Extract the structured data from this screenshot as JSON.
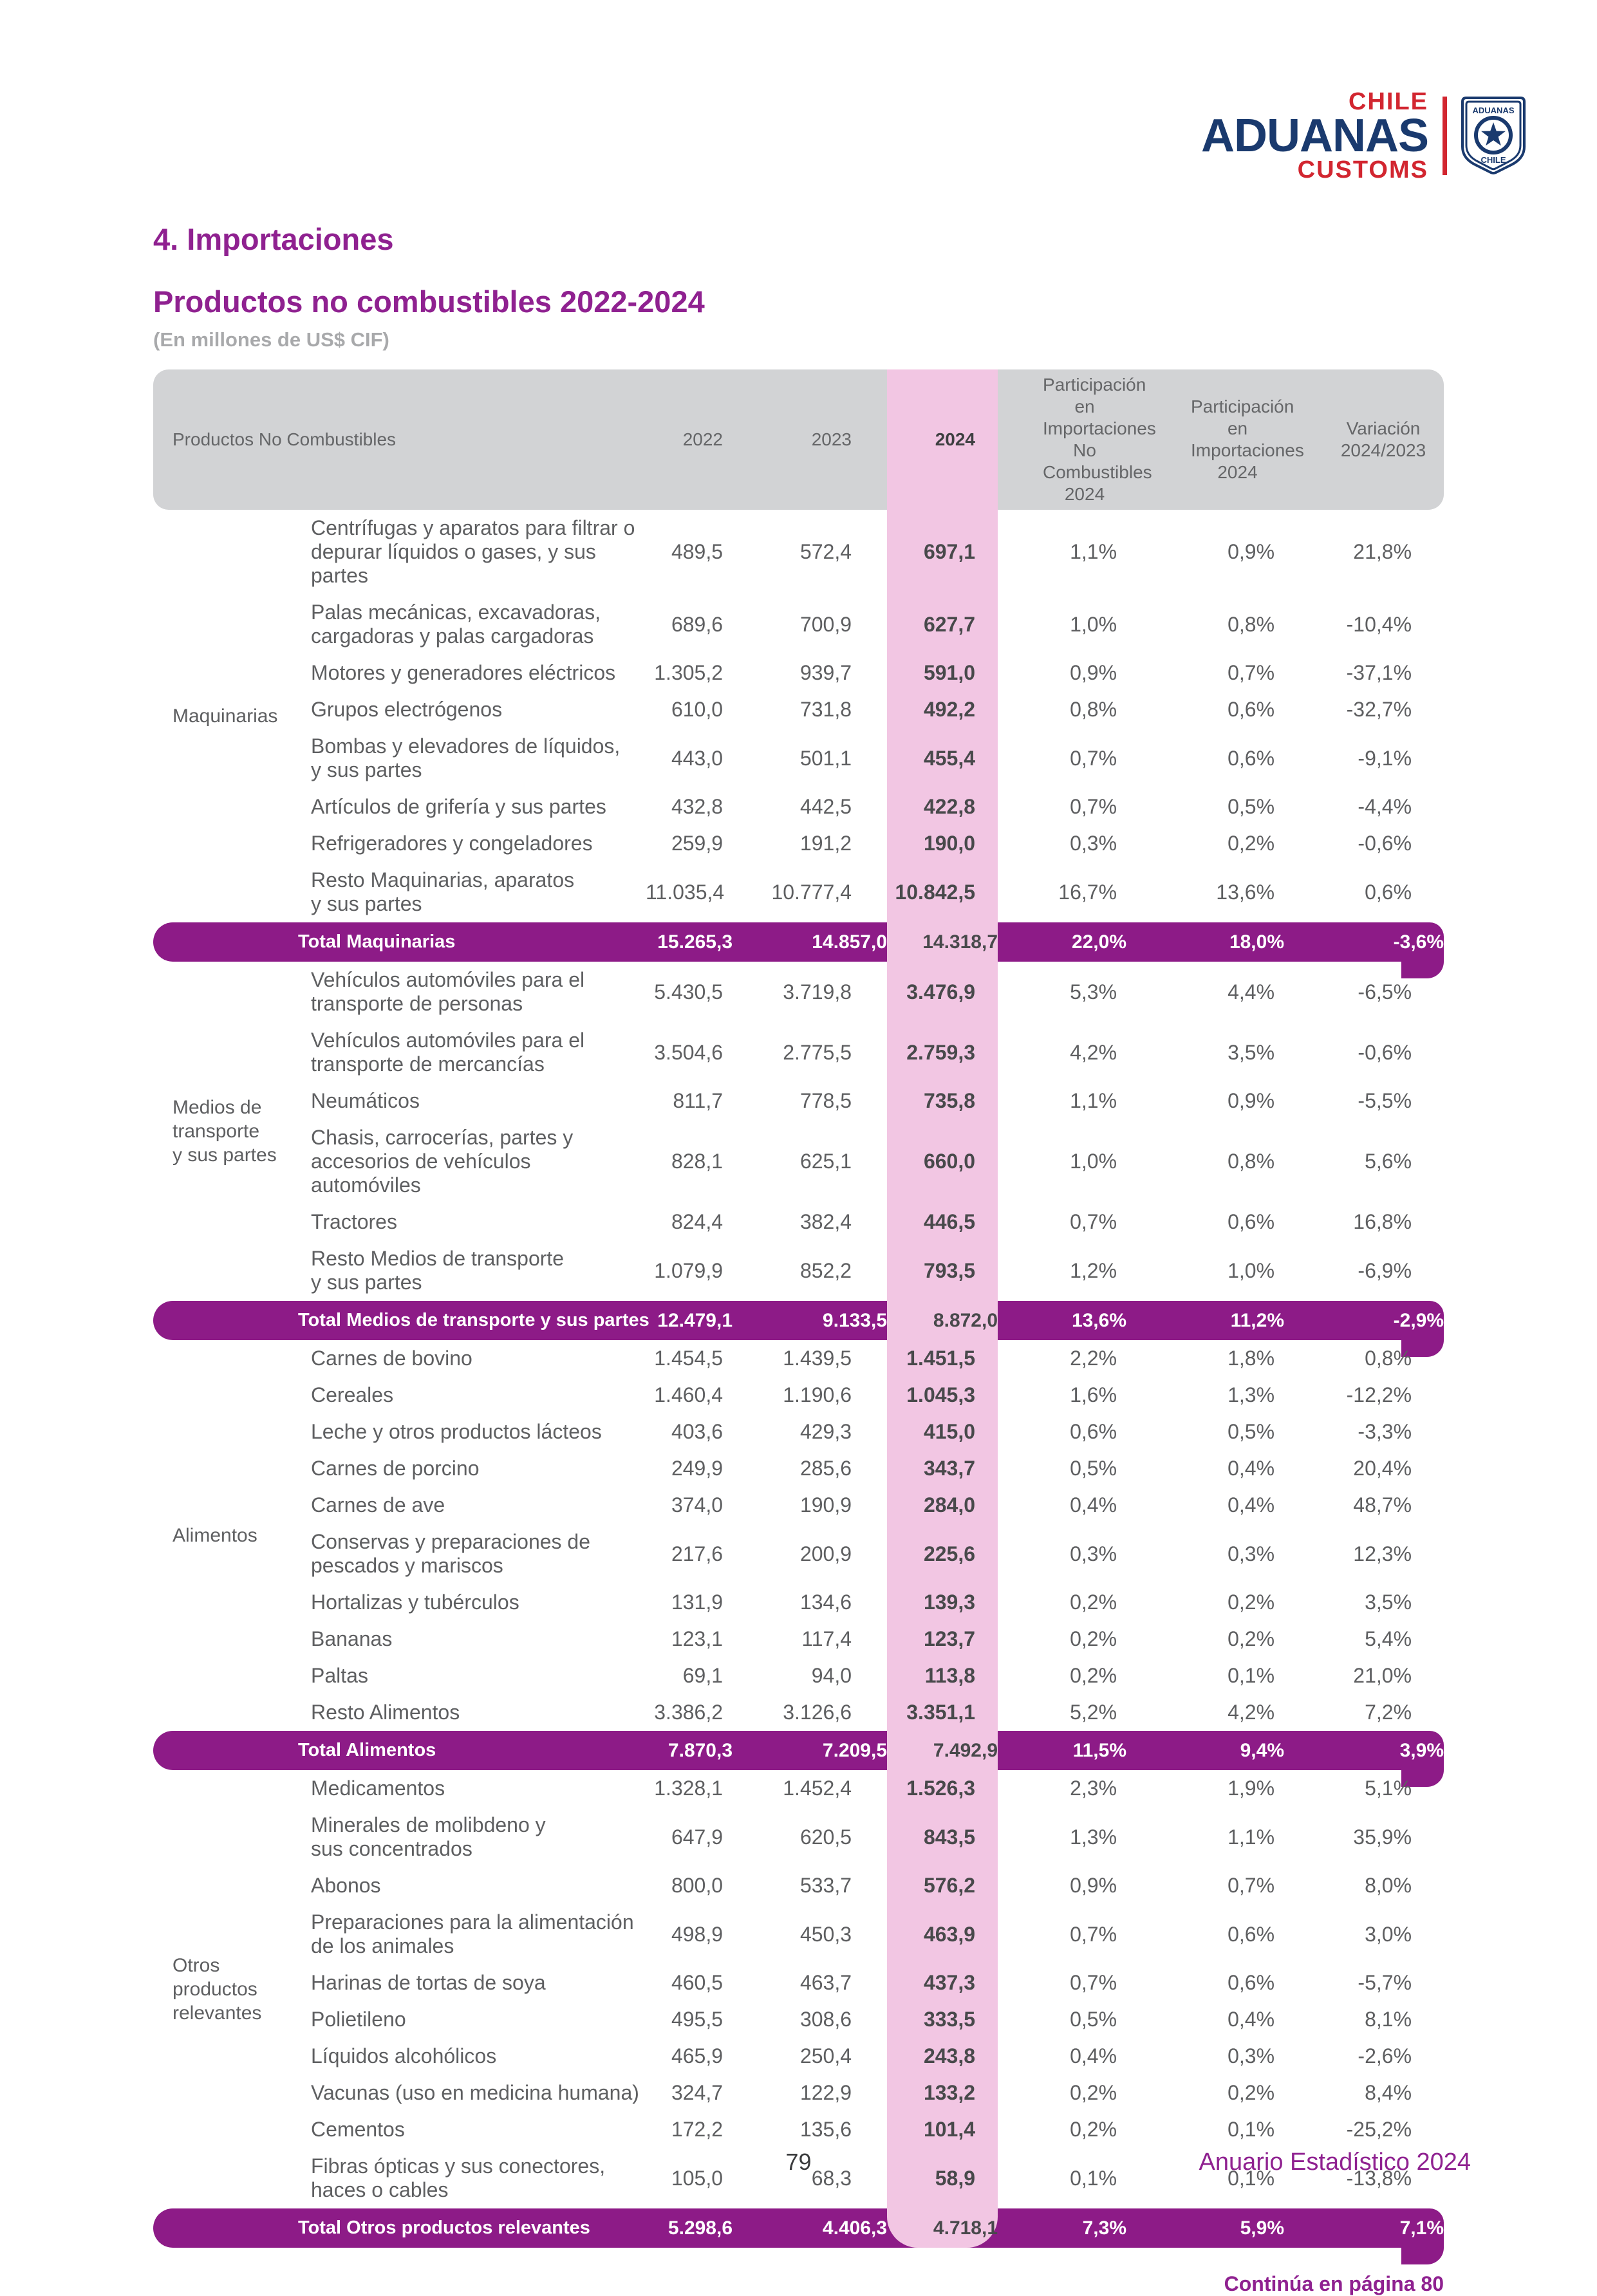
{
  "page": {
    "section_title": "4. Importaciones",
    "subtitle": "Productos no combustibles 2022-2024",
    "unit_note": "(En millones de US$ CIF)",
    "continua": "Continúa en página 80",
    "page_number": "79",
    "footer_right": "Anuario Estadístico 2024"
  },
  "logo": {
    "chile": "CHILE",
    "aduanas": "ADUANAS",
    "customs": "CUSTOMS",
    "shield_top": "ADUANAS",
    "shield_bottom": "CHILE"
  },
  "colors": {
    "purple": "#8D1B87",
    "pink": "#F2C6E3",
    "header_gray": "#D2D3D5",
    "heading_purple": "#8F2190",
    "logo_red": "#D22630",
    "logo_navy": "#1A3A6E"
  },
  "table": {
    "columns": {
      "products": "Productos No Combustibles",
      "y2022": "2022",
      "y2023": "2023",
      "y2024": "2024",
      "part_nc": "Participación en\nImportaciones No\nCombustibles 2024",
      "part_imp": "Participación en\nImportaciones\n2024",
      "variacion": "Variación\n2024/2023"
    },
    "groups": [
      {
        "name": "Maquinarias",
        "rows": [
          {
            "product": "Centrífugas y aparatos para filtrar o\ndepurar líquidos o gases, y sus partes",
            "v2022": "489,5",
            "v2023": "572,4",
            "v2024": "697,1",
            "part_nc": "1,1%",
            "part_imp": "0,9%",
            "var": "21,8%"
          },
          {
            "product": "Palas mecánicas, excavadoras,\ncargadoras y palas cargadoras",
            "v2022": "689,6",
            "v2023": "700,9",
            "v2024": "627,7",
            "part_nc": "1,0%",
            "part_imp": "0,8%",
            "var": "-10,4%"
          },
          {
            "product": "Motores y generadores eléctricos",
            "v2022": "1.305,2",
            "v2023": "939,7",
            "v2024": "591,0",
            "part_nc": "0,9%",
            "part_imp": "0,7%",
            "var": "-37,1%"
          },
          {
            "product": "Grupos electrógenos",
            "v2022": "610,0",
            "v2023": "731,8",
            "v2024": "492,2",
            "part_nc": "0,8%",
            "part_imp": "0,6%",
            "var": "-32,7%"
          },
          {
            "product": "Bombas y elevadores de líquidos,\ny sus partes",
            "v2022": "443,0",
            "v2023": "501,1",
            "v2024": "455,4",
            "part_nc": "0,7%",
            "part_imp": "0,6%",
            "var": "-9,1%"
          },
          {
            "product": "Artículos de grifería y sus partes",
            "v2022": "432,8",
            "v2023": "442,5",
            "v2024": "422,8",
            "part_nc": "0,7%",
            "part_imp": "0,5%",
            "var": "-4,4%"
          },
          {
            "product": "Refrigeradores y congeladores",
            "v2022": "259,9",
            "v2023": "191,2",
            "v2024": "190,0",
            "part_nc": "0,3%",
            "part_imp": "0,2%",
            "var": "-0,6%"
          },
          {
            "product": "Resto Maquinarias, aparatos\ny sus partes",
            "v2022": "11.035,4",
            "v2023": "10.777,4",
            "v2024": "10.842,5",
            "part_nc": "16,7%",
            "part_imp": "13,6%",
            "var": "0,6%"
          }
        ],
        "total": {
          "label": "Total Maquinarias",
          "v2022": "15.265,3",
          "v2023": "14.857,0",
          "v2024": "14.318,7",
          "part_nc": "22,0%",
          "part_imp": "18,0%",
          "var": "-3,6%"
        }
      },
      {
        "name": "Medios de\ntransporte\ny sus partes",
        "rows": [
          {
            "product": "Vehículos automóviles para el\ntransporte de personas",
            "v2022": "5.430,5",
            "v2023": "3.719,8",
            "v2024": "3.476,9",
            "part_nc": "5,3%",
            "part_imp": "4,4%",
            "var": "-6,5%"
          },
          {
            "product": "Vehículos automóviles para el\ntransporte de mercancías",
            "v2022": "3.504,6",
            "v2023": "2.775,5",
            "v2024": "2.759,3",
            "part_nc": "4,2%",
            "part_imp": "3,5%",
            "var": "-0,6%"
          },
          {
            "product": "Neumáticos",
            "v2022": "811,7",
            "v2023": "778,5",
            "v2024": "735,8",
            "part_nc": "1,1%",
            "part_imp": "0,9%",
            "var": "-5,5%"
          },
          {
            "product": "Chasis, carrocerías, partes y\naccesorios de vehículos automóviles",
            "v2022": "828,1",
            "v2023": "625,1",
            "v2024": "660,0",
            "part_nc": "1,0%",
            "part_imp": "0,8%",
            "var": "5,6%"
          },
          {
            "product": "Tractores",
            "v2022": "824,4",
            "v2023": "382,4",
            "v2024": "446,5",
            "part_nc": "0,7%",
            "part_imp": "0,6%",
            "var": "16,8%"
          },
          {
            "product": "Resto Medios de transporte\ny sus partes",
            "v2022": "1.079,9",
            "v2023": "852,2",
            "v2024": "793,5",
            "part_nc": "1,2%",
            "part_imp": "1,0%",
            "var": "-6,9%"
          }
        ],
        "total": {
          "label": "Total Medios de transporte y sus partes",
          "v2022": "12.479,1",
          "v2023": "9.133,5",
          "v2024": "8.872,0",
          "part_nc": "13,6%",
          "part_imp": "11,2%",
          "var": "-2,9%"
        }
      },
      {
        "name": "Alimentos",
        "rows": [
          {
            "product": "Carnes de bovino",
            "v2022": "1.454,5",
            "v2023": "1.439,5",
            "v2024": "1.451,5",
            "part_nc": "2,2%",
            "part_imp": "1,8%",
            "var": "0,8%"
          },
          {
            "product": "Cereales",
            "v2022": "1.460,4",
            "v2023": "1.190,6",
            "v2024": "1.045,3",
            "part_nc": "1,6%",
            "part_imp": "1,3%",
            "var": "-12,2%"
          },
          {
            "product": "Leche y otros productos lácteos",
            "v2022": "403,6",
            "v2023": "429,3",
            "v2024": "415,0",
            "part_nc": "0,6%",
            "part_imp": "0,5%",
            "var": "-3,3%"
          },
          {
            "product": "Carnes de porcino",
            "v2022": "249,9",
            "v2023": "285,6",
            "v2024": "343,7",
            "part_nc": "0,5%",
            "part_imp": "0,4%",
            "var": "20,4%"
          },
          {
            "product": "Carnes de ave",
            "v2022": "374,0",
            "v2023": "190,9",
            "v2024": "284,0",
            "part_nc": "0,4%",
            "part_imp": "0,4%",
            "var": "48,7%"
          },
          {
            "product": "Conservas y preparaciones de\npescados y mariscos",
            "v2022": "217,6",
            "v2023": "200,9",
            "v2024": "225,6",
            "part_nc": "0,3%",
            "part_imp": "0,3%",
            "var": "12,3%"
          },
          {
            "product": "Hortalizas y tubérculos",
            "v2022": "131,9",
            "v2023": "134,6",
            "v2024": "139,3",
            "part_nc": "0,2%",
            "part_imp": "0,2%",
            "var": "3,5%"
          },
          {
            "product": "Bananas",
            "v2022": "123,1",
            "v2023": "117,4",
            "v2024": "123,7",
            "part_nc": "0,2%",
            "part_imp": "0,2%",
            "var": "5,4%"
          },
          {
            "product": "Paltas",
            "v2022": "69,1",
            "v2023": "94,0",
            "v2024": "113,8",
            "part_nc": "0,2%",
            "part_imp": "0,1%",
            "var": "21,0%"
          },
          {
            "product": "Resto Alimentos",
            "v2022": "3.386,2",
            "v2023": "3.126,6",
            "v2024": "3.351,1",
            "part_nc": "5,2%",
            "part_imp": "4,2%",
            "var": "7,2%"
          }
        ],
        "total": {
          "label": "Total Alimentos",
          "v2022": "7.870,3",
          "v2023": "7.209,5",
          "v2024": "7.492,9",
          "part_nc": "11,5%",
          "part_imp": "9,4%",
          "var": "3,9%"
        }
      },
      {
        "name": "Otros productos\nrelevantes",
        "rows": [
          {
            "product": "Medicamentos",
            "v2022": "1.328,1",
            "v2023": "1.452,4",
            "v2024": "1.526,3",
            "part_nc": "2,3%",
            "part_imp": "1,9%",
            "var": "5,1%"
          },
          {
            "product": "Minerales de molibdeno y\nsus concentrados",
            "v2022": "647,9",
            "v2023": "620,5",
            "v2024": "843,5",
            "part_nc": "1,3%",
            "part_imp": "1,1%",
            "var": "35,9%"
          },
          {
            "product": "Abonos",
            "v2022": "800,0",
            "v2023": "533,7",
            "v2024": "576,2",
            "part_nc": "0,9%",
            "part_imp": "0,7%",
            "var": "8,0%"
          },
          {
            "product": "Preparaciones para la alimentación\nde los animales",
            "v2022": "498,9",
            "v2023": "450,3",
            "v2024": "463,9",
            "part_nc": "0,7%",
            "part_imp": "0,6%",
            "var": "3,0%"
          },
          {
            "product": "Harinas de tortas de soya",
            "v2022": "460,5",
            "v2023": "463,7",
            "v2024": "437,3",
            "part_nc": "0,7%",
            "part_imp": "0,6%",
            "var": "-5,7%"
          },
          {
            "product": "Polietileno",
            "v2022": "495,5",
            "v2023": "308,6",
            "v2024": "333,5",
            "part_nc": "0,5%",
            "part_imp": "0,4%",
            "var": "8,1%"
          },
          {
            "product": "Líquidos alcohólicos",
            "v2022": "465,9",
            "v2023": "250,4",
            "v2024": "243,8",
            "part_nc": "0,4%",
            "part_imp": "0,3%",
            "var": "-2,6%"
          },
          {
            "product": "Vacunas (uso en medicina humana)",
            "v2022": "324,7",
            "v2023": "122,9",
            "v2024": "133,2",
            "part_nc": "0,2%",
            "part_imp": "0,2%",
            "var": "8,4%"
          },
          {
            "product": "Cementos",
            "v2022": "172,2",
            "v2023": "135,6",
            "v2024": "101,4",
            "part_nc": "0,2%",
            "part_imp": "0,1%",
            "var": "-25,2%"
          },
          {
            "product": "Fibras ópticas y sus conectores,\nhaces o cables",
            "v2022": "105,0",
            "v2023": "68,3",
            "v2024": "58,9",
            "part_nc": "0,1%",
            "part_imp": "0,1%",
            "var": "-13,8%"
          }
        ],
        "total": {
          "label": "Total Otros productos relevantes",
          "v2022": "5.298,6",
          "v2023": "4.406,3",
          "v2024": "4.718,1",
          "part_nc": "7,3%",
          "part_imp": "5,9%",
          "var": "7,1%"
        }
      }
    ]
  }
}
